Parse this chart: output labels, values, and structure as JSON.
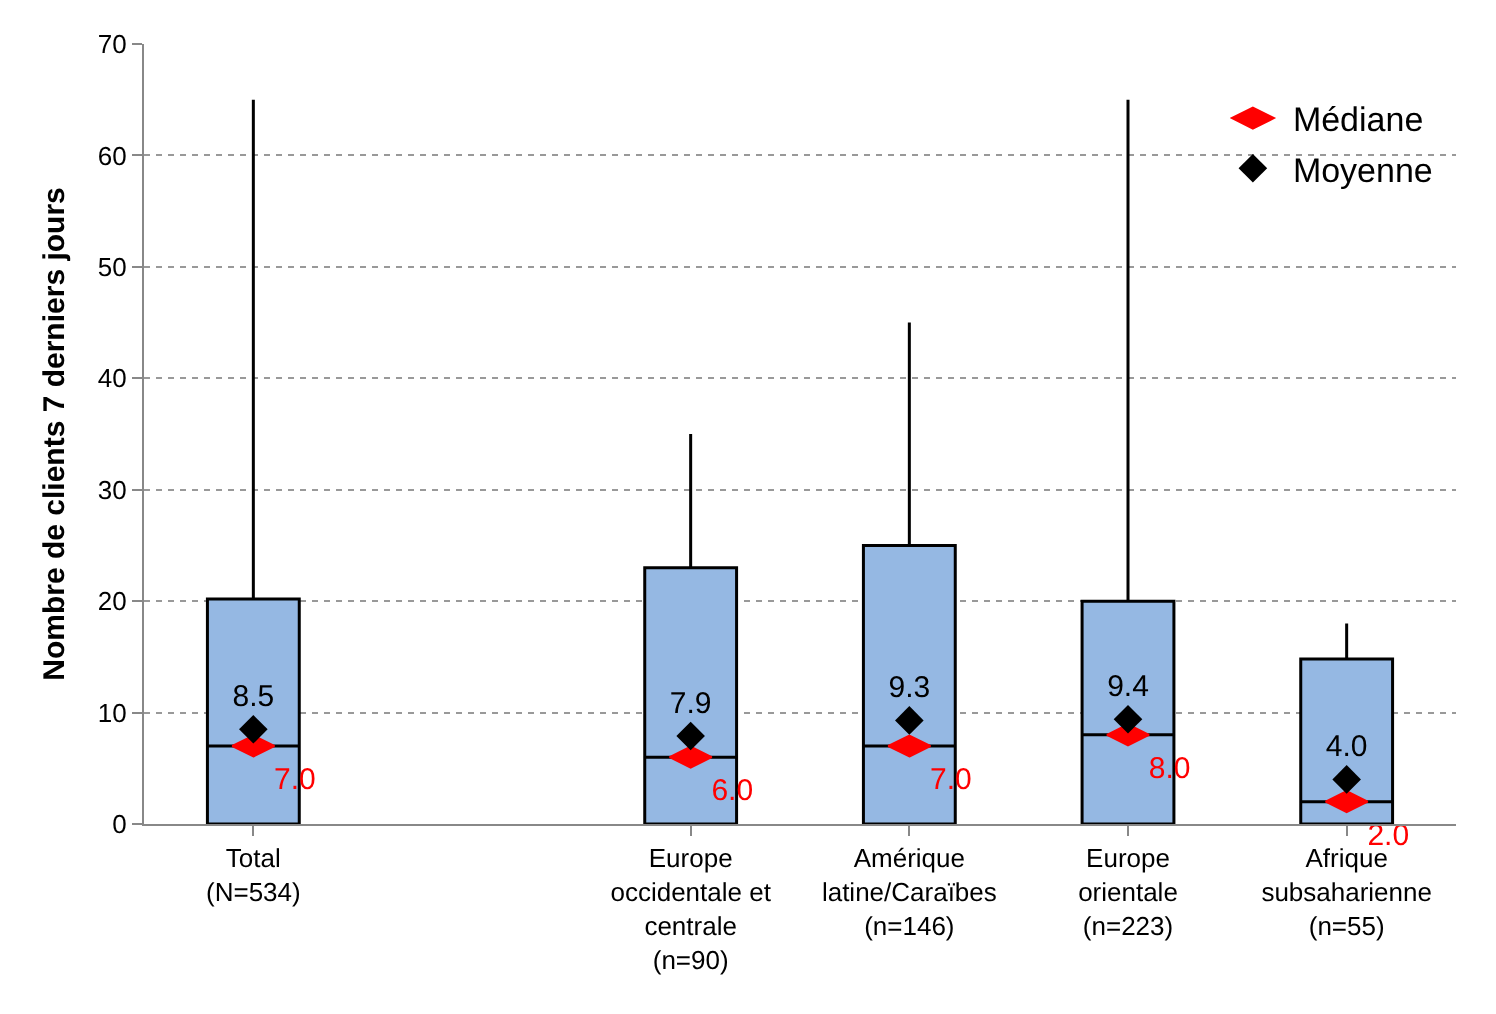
{
  "chart_data": {
    "type": "box",
    "ylabel": "Nombre de clients 7 derniers jours",
    "categories": [
      "Total (N=534)",
      null,
      "Europe occidentale et centrale (n=90)",
      "Amérique latine/Caraïbes (n=146)",
      "Europe orientale (n=223)",
      "Afrique subsaharienne (n=55)"
    ],
    "ylim": [
      0,
      70
    ],
    "yticks": [
      0,
      10,
      20,
      30,
      40,
      50,
      60,
      70
    ],
    "grid": "y",
    "legend": "top right",
    "series": [
      {
        "type": "box",
        "color": "#95b8e3",
        "boxes": [
          {
            "q1": 0,
            "median": 7,
            "q3": 20.2,
            "high": 65
          },
          null,
          {
            "q1": 0,
            "median": 6,
            "q3": 23,
            "high": 35
          },
          {
            "q1": 0,
            "median": 7,
            "q3": 25,
            "high": 45
          },
          {
            "q1": 0,
            "median": 8,
            "q3": 20,
            "high": 65
          },
          {
            "q1": 0,
            "median": 2,
            "q3": 14.8,
            "high": 18
          }
        ]
      },
      {
        "type": "scatter",
        "name": "Médiane",
        "color": "#ff0000",
        "values": [
          7,
          null,
          6,
          7,
          8,
          2
        ],
        "value_labels": [
          "7.0",
          null,
          "6.0",
          "7.0",
          "8.0",
          "2.0"
        ]
      },
      {
        "type": "scatter",
        "name": "Moyenne",
        "color": "#000000",
        "marker": "diamond",
        "values": [
          8.5,
          null,
          7.9,
          9.3,
          9.4,
          4.0
        ],
        "value_labels": [
          "8.5",
          null,
          "7.9",
          "9.3",
          "9.4",
          "4.0"
        ]
      }
    ]
  }
}
